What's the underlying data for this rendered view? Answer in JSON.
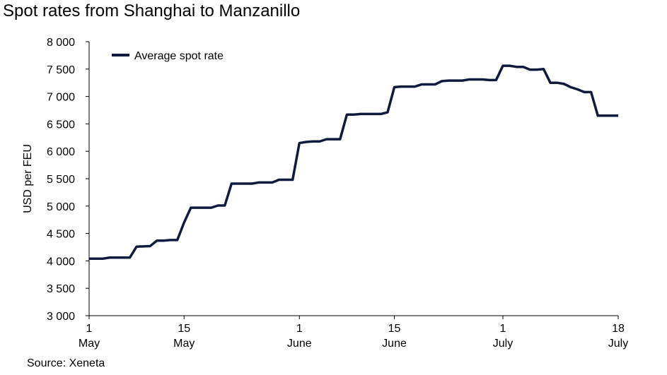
{
  "chart_data": {
    "type": "line",
    "title": "Spot rates from Shanghai to Manzanillo",
    "ylabel": "USD per FEU",
    "xlabel": "",
    "source": "Source: Xeneta",
    "ylim": [
      3000,
      8000
    ],
    "xlim": [
      0,
      78
    ],
    "yticks": [
      {
        "value": 3000,
        "label": "3 000"
      },
      {
        "value": 3500,
        "label": "3 500"
      },
      {
        "value": 4000,
        "label": "4 000"
      },
      {
        "value": 4500,
        "label": "4 500"
      },
      {
        "value": 5000,
        "label": "5 000"
      },
      {
        "value": 5500,
        "label": "5 500"
      },
      {
        "value": 6000,
        "label": "6 000"
      },
      {
        "value": 6500,
        "label": "6 500"
      },
      {
        "value": 7000,
        "label": "7 000"
      },
      {
        "value": 7500,
        "label": "7 500"
      },
      {
        "value": 8000,
        "label": "8 000"
      }
    ],
    "xticks": [
      {
        "day": 0,
        "line1": "1",
        "line2": "May"
      },
      {
        "day": 14,
        "line1": "15",
        "line2": "May"
      },
      {
        "day": 31,
        "line1": "1",
        "line2": "June"
      },
      {
        "day": 45,
        "line1": "15",
        "line2": "June"
      },
      {
        "day": 61,
        "line1": "1",
        "line2": "July"
      },
      {
        "day": 78,
        "line1": "18",
        "line2": "July"
      }
    ],
    "legend": {
      "position": "top-left"
    },
    "grid": false,
    "series": [
      {
        "name": "Average spot rate",
        "color": "#0f1a3d",
        "points": [
          [
            0,
            4040
          ],
          [
            2,
            4040
          ],
          [
            3,
            4060
          ],
          [
            6,
            4060
          ],
          [
            7,
            4260
          ],
          [
            9,
            4270
          ],
          [
            10,
            4370
          ],
          [
            11,
            4370
          ],
          [
            12,
            4380
          ],
          [
            13,
            4380
          ],
          [
            14,
            4700
          ],
          [
            15,
            4970
          ],
          [
            18,
            4970
          ],
          [
            19,
            5010
          ],
          [
            20,
            5010
          ],
          [
            21,
            5410
          ],
          [
            24,
            5410
          ],
          [
            25,
            5430
          ],
          [
            27,
            5430
          ],
          [
            28,
            5480
          ],
          [
            30,
            5480
          ],
          [
            31,
            6150
          ],
          [
            32,
            6170
          ],
          [
            33,
            6180
          ],
          [
            34,
            6180
          ],
          [
            35,
            6220
          ],
          [
            37,
            6220
          ],
          [
            38,
            6670
          ],
          [
            39,
            6670
          ],
          [
            40,
            6680
          ],
          [
            43,
            6680
          ],
          [
            44,
            6710
          ],
          [
            45,
            7170
          ],
          [
            46,
            7180
          ],
          [
            48,
            7180
          ],
          [
            49,
            7220
          ],
          [
            51,
            7220
          ],
          [
            52,
            7280
          ],
          [
            53,
            7290
          ],
          [
            55,
            7290
          ],
          [
            56,
            7310
          ],
          [
            58,
            7310
          ],
          [
            59,
            7300
          ],
          [
            60,
            7300
          ],
          [
            61,
            7560
          ],
          [
            62,
            7560
          ],
          [
            63,
            7540
          ],
          [
            64,
            7540
          ],
          [
            65,
            7490
          ],
          [
            66,
            7490
          ],
          [
            67,
            7500
          ],
          [
            68,
            7250
          ],
          [
            69,
            7250
          ],
          [
            70,
            7230
          ],
          [
            71,
            7170
          ],
          [
            72,
            7130
          ],
          [
            73,
            7080
          ],
          [
            74,
            7080
          ],
          [
            75,
            6650
          ],
          [
            78,
            6650
          ]
        ]
      }
    ]
  }
}
